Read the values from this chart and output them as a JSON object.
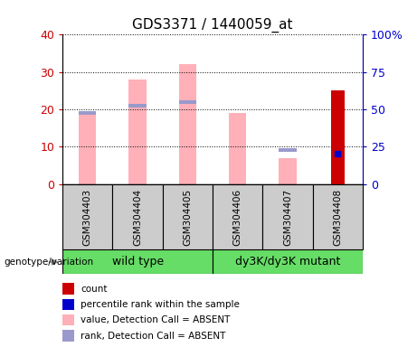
{
  "title": "GDS3371 / 1440059_at",
  "samples": [
    "GSM304403",
    "GSM304404",
    "GSM304405",
    "GSM304406",
    "GSM304407",
    "GSM304408"
  ],
  "pink_bar_values": [
    19,
    28,
    32,
    19,
    7,
    0
  ],
  "blue_rank_values": [
    19,
    21,
    22,
    0,
    9,
    0
  ],
  "red_bar_values": [
    0,
    0,
    0,
    0,
    0,
    25
  ],
  "blue_dot_values": [
    0,
    0,
    0,
    0,
    0,
    20
  ],
  "ylim_left": [
    0,
    40
  ],
  "ylim_right": [
    0,
    100
  ],
  "yticks_left": [
    0,
    10,
    20,
    30,
    40
  ],
  "yticks_right": [
    0,
    25,
    50,
    75,
    100
  ],
  "yticklabels_right": [
    "0",
    "25",
    "50",
    "75",
    "100%"
  ],
  "pink_color": "#FFB0B8",
  "blue_rank_color": "#9999CC",
  "red_color": "#CC0000",
  "blue_dot_color": "#0000CC",
  "axis_color_left": "#CC0000",
  "axis_color_right": "#0000CC",
  "bg_sample_color": "#CCCCCC",
  "green_color": "#66DD66",
  "legend_items": [
    {
      "color": "#CC0000",
      "label": "count"
    },
    {
      "color": "#0000CC",
      "label": "percentile rank within the sample"
    },
    {
      "color": "#FFB0B8",
      "label": "value, Detection Call = ABSENT"
    },
    {
      "color": "#9999CC",
      "label": "rank, Detection Call = ABSENT"
    }
  ],
  "genotype_label": "genotype/variation",
  "wild_type_label": "wild type",
  "mutant_label": "dy3K/dy3K mutant"
}
